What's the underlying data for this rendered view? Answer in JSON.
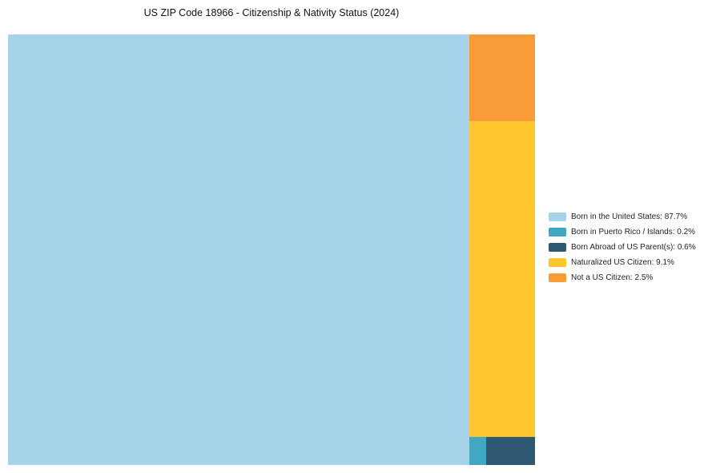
{
  "title": "US ZIP Code 18966 - Citizenship & Nativity Status (2024)",
  "chart_data": {
    "type": "treemap",
    "title": "US ZIP Code 18966 - Citizenship & Nativity Status (2024)",
    "legend_position": "right",
    "background": "#ffffff",
    "segments": [
      {
        "label": "Born in the United States",
        "value": 87.7,
        "color": "#A7D3EA",
        "legend": "Born in the United States: 87.7%"
      },
      {
        "label": "Born in Puerto Rico / Islands",
        "value": 0.2,
        "color": "#41A8C4",
        "legend": "Born in Puerto Rico / Islands: 0.2%"
      },
      {
        "label": "Born Abroad of US Parent(s)",
        "value": 0.6,
        "color": "#2F5972",
        "legend": "Born Abroad of US Parent(s): 0.6%"
      },
      {
        "label": "Naturalized US Citizen",
        "value": 9.1,
        "color": "#FEC62F",
        "legend": "Naturalized US Citizen: 9.1%"
      },
      {
        "label": "Not a US Citizen",
        "value": 2.5,
        "color": "#F99C38",
        "legend": "Not a US Citizen: 2.5%"
      }
    ]
  }
}
